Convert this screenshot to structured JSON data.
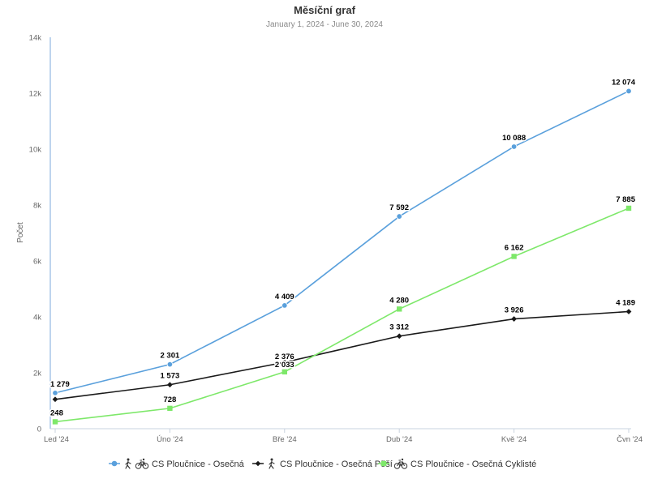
{
  "chart_data": {
    "type": "line",
    "title": "Měsíční graf",
    "subtitle": "January 1, 2024 - June 30, 2024",
    "ylabel": "Počet",
    "xlabel": "",
    "ylim": [
      0,
      14000
    ],
    "yticks": [
      0,
      2000,
      4000,
      6000,
      8000,
      10000,
      12000,
      14000
    ],
    "ytick_labels": [
      "0",
      "2k",
      "4k",
      "6k",
      "8k",
      "10k",
      "12k",
      "14k"
    ],
    "categories": [
      "Led '24",
      "Úno '24",
      "Bře '24",
      "Dub '24",
      "Kvě '24",
      "Čvn '24"
    ],
    "grid": false,
    "legend_position": "bottom",
    "series": [
      {
        "name": "CS Ploučnice - Osečná",
        "color": "#5aa0dc",
        "marker": "circle",
        "icons": [
          "pedestrian-icon",
          "bicycle-icon"
        ],
        "values": [
          1279,
          2301,
          4409,
          7592,
          10088,
          12074
        ],
        "labels": [
          "1 279",
          "2 301",
          "4 409",
          "7 592",
          "10 088",
          "12 074"
        ]
      },
      {
        "name": "CS Ploučnice - Osečná Pěší",
        "color": "#1a1a1a",
        "marker": "diamond",
        "icons": [
          "pedestrian-icon"
        ],
        "values": [
          1050,
          1573,
          2376,
          3312,
          3926,
          4189
        ],
        "labels": [
          "",
          "1 573",
          "2 376",
          "3 312",
          "3 926",
          "4 189"
        ]
      },
      {
        "name": "CS Ploučnice - Osečná Cyklisté",
        "color": "#7ee86a",
        "marker": "square",
        "icons": [
          "bicycle-icon"
        ],
        "values": [
          248,
          728,
          2033,
          4280,
          6162,
          7885
        ],
        "labels": [
          "248",
          "728",
          "2 033",
          "4 280",
          "6 162",
          "7 885"
        ]
      }
    ]
  }
}
